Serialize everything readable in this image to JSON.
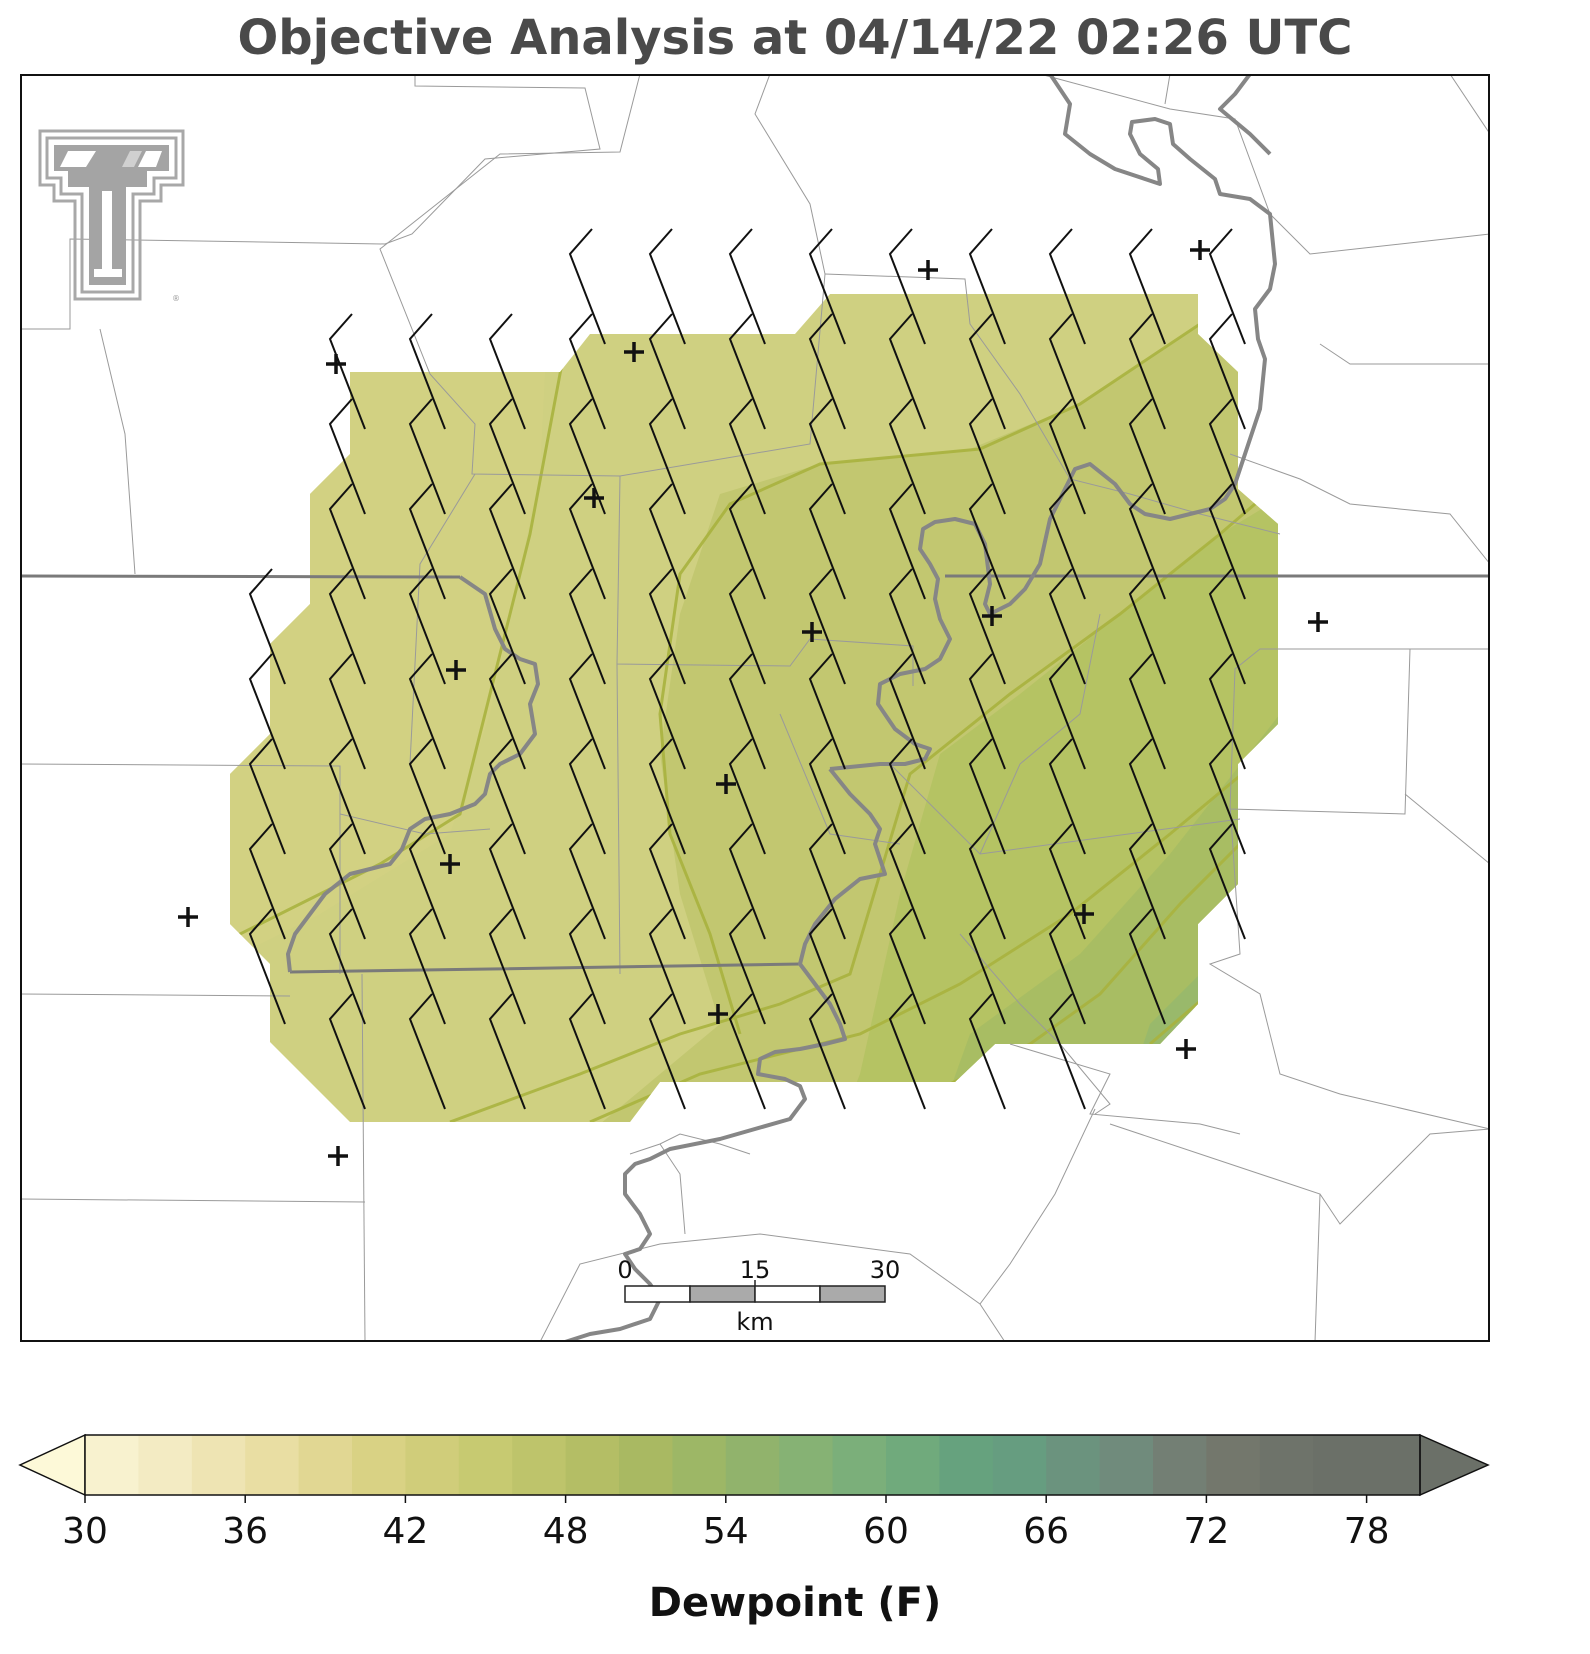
{
  "title": "Objective Analysis at 04/14/22 02:26 UTC",
  "logo": "texas-tech-double-t-logo",
  "scale_bar": {
    "ticks": [
      "0",
      "15",
      "30"
    ],
    "unit": "km"
  },
  "colorbar": {
    "label": "Dewpoint (F)",
    "min": 30,
    "max": 80,
    "step": 2,
    "ticks": [
      "30",
      "36",
      "42",
      "48",
      "54",
      "60",
      "66",
      "72",
      "78"
    ],
    "extend": "both",
    "colors": [
      "#fdf9d8",
      "#f8f2cf",
      "#f3ebc3",
      "#eee4b3",
      "#e9dea3",
      "#e1d793",
      "#d9d284",
      "#d0cd7a",
      "#c7ca71",
      "#bec46b",
      "#b4be65",
      "#a9b962",
      "#9db766",
      "#91b36c",
      "#86b274",
      "#7baf7a",
      "#70aa7c",
      "#66a27e",
      "#669d80",
      "#6b937e",
      "#708b7c",
      "#737f74",
      "#73776c",
      "#6e736a",
      "#6b7068"
    ]
  },
  "colors": {
    "fill_low": "#cbcd7a",
    "fill_mid": "#b5c466",
    "fill_high": "#9cbd6a",
    "contour": "#9aa83a",
    "state_border": "#777777",
    "river": "#888888",
    "county_line": "#aaaaaa"
  }
}
